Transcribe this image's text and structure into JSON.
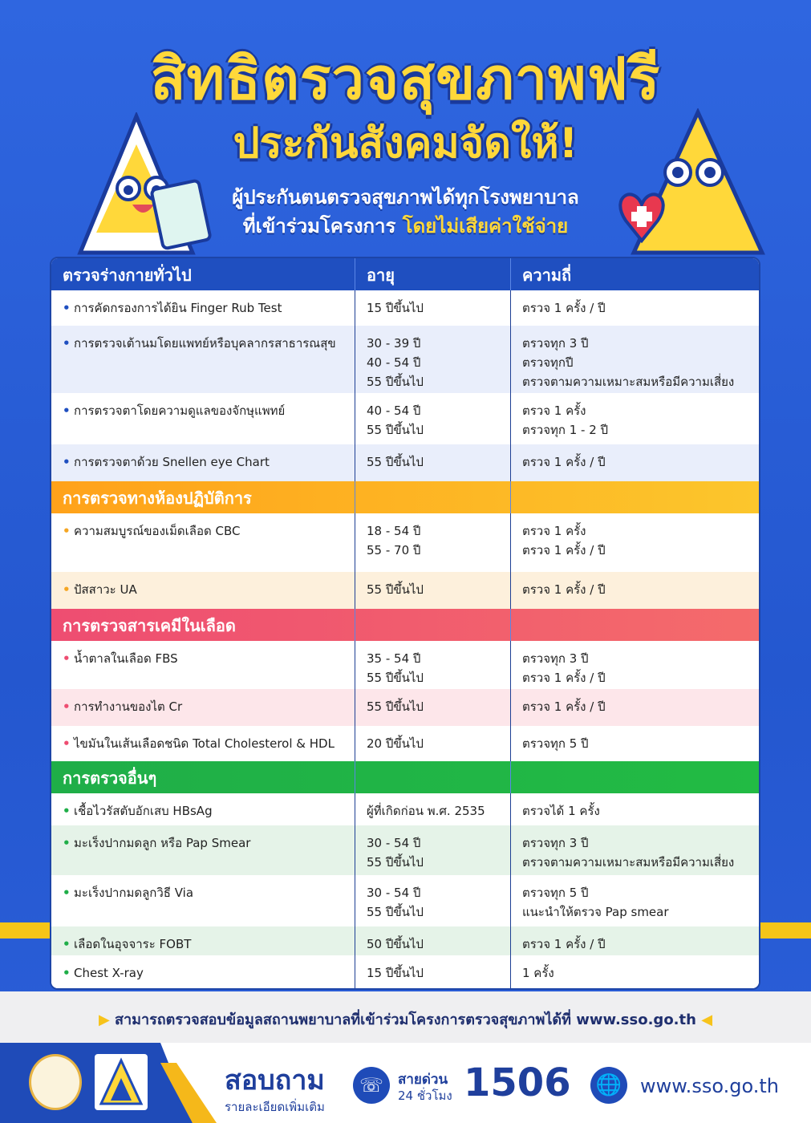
{
  "header": {
    "title_line1": "สิทธิตรวจสุขภาพฟรี",
    "title_line2": "ประกันสังคมจัดให้!",
    "subtitle_line1": "ผู้ประกันตนตรวจสุขภาพได้ทุกโรงพยาบาล",
    "subtitle_line2_a": "ที่เข้าร่วมโครงการ ",
    "subtitle_line2_highlight": "โดยไม่เสียค่าใช้จ่าย"
  },
  "colors": {
    "primary": "#2457cf",
    "title_yellow": "#ffd83a",
    "orange": "#ffa41b",
    "pink": "#f0506e",
    "green": "#22b14c"
  },
  "table": {
    "col_age": "อายุ",
    "col_freq": "ความถี่",
    "sections": [
      {
        "title": "ตรวจร่างกายทั่วไป",
        "header_bg": "#1f4fc0",
        "header_bg2": "#1f4fc0",
        "dot_color": "#1f4fc0",
        "alt_bg": "#e9eefb",
        "rows": [
          {
            "item": "การคัดกรองการได้ยิน Finger Rub Test",
            "age": [
              "15 ปีขึ้นไป"
            ],
            "freq": [
              "ตรวจ 1 ครั้ง / ปี"
            ]
          },
          {
            "item": "การตรวจเต้านมโดยแพทย์หรือบุคลากรสาธารณสุข",
            "age": [
              "30 - 39 ปี",
              "40 - 54 ปี",
              "55 ปีขึ้นไป"
            ],
            "freq": [
              "ตรวจทุก 3 ปี",
              "ตรวจทุกปี",
              "ตรวจตามความเหมาะสมหรือมีความเสี่ยง"
            ]
          },
          {
            "item": "การตรวจตาโดยความดูแลของจักษุแพทย์",
            "age": [
              "40 - 54 ปี",
              "55 ปีขึ้นไป"
            ],
            "freq": [
              "ตรวจ 1 ครั้ง",
              "ตรวจทุก 1 - 2 ปี"
            ]
          },
          {
            "item": "การตรวจตาด้วย Snellen eye Chart",
            "age": [
              "55 ปีขึ้นไป"
            ],
            "freq": [
              "ตรวจ 1 ครั้ง / ปี"
            ]
          }
        ]
      },
      {
        "title": "การตรวจทางห้องปฏิบัติการ",
        "header_bg": "#ffa21a",
        "header_bg2": "#fcc62c",
        "dot_color": "#f5a623",
        "alt_bg": "#fdf0dc",
        "rows": [
          {
            "item": "ความสมบูรณ์ของเม็ดเลือด CBC",
            "age": [
              "18 - 54 ปี",
              "55 - 70 ปี"
            ],
            "freq": [
              "ตรวจ 1 ครั้ง",
              "ตรวจ 1 ครั้ง / ปี"
            ]
          },
          {
            "item": "ปัสสาวะ UA",
            "age": [
              "55 ปีขึ้นไป"
            ],
            "freq": [
              "ตรวจ 1 ครั้ง / ปี"
            ]
          }
        ]
      },
      {
        "title": "การตรวจสารเคมีในเลือด",
        "header_bg": "#ee4d71",
        "header_bg2": "#f46b6b",
        "dot_color": "#ee4d71",
        "alt_bg": "#fde6ea",
        "rows": [
          {
            "item": "น้ำตาลในเลือด FBS",
            "age": [
              "35 - 54 ปี",
              "55 ปีขึ้นไป"
            ],
            "freq": [
              "ตรวจทุก 3 ปี",
              "ตรวจ 1 ครั้ง / ปี"
            ]
          },
          {
            "item": "การทำงานของไต Cr",
            "age": [
              "55 ปีขึ้นไป"
            ],
            "freq": [
              "ตรวจ 1 ครั้ง / ปี"
            ]
          },
          {
            "item": "ไขมันในเส้นเลือดชนิด Total Cholesterol & HDL",
            "age": [
              "20 ปีขึ้นไป"
            ],
            "freq": [
              "ตรวจทุก 5 ปี"
            ]
          }
        ]
      },
      {
        "title": "การตรวจอื่นๆ",
        "header_bg": "#1fae48",
        "header_bg2": "#22bb44",
        "dot_color": "#1fae48",
        "alt_bg": "#e5f3e8",
        "rows": [
          {
            "item": "เชื้อไวรัสตับอักเสบ HBsAg",
            "age": [
              "ผู้ที่เกิดก่อน พ.ศ. 2535"
            ],
            "freq": [
              "ตรวจได้ 1 ครั้ง"
            ]
          },
          {
            "item": "มะเร็งปากมดลูก หรือ Pap Smear",
            "age": [
              "30 - 54 ปี",
              "55 ปีขึ้นไป"
            ],
            "freq": [
              "ตรวจทุก 3 ปี",
              "ตรวจตามความเหมาะสมหรือมีความเสี่ยง"
            ]
          },
          {
            "item": "มะเร็งปากมดลูกวิธี Via",
            "age": [
              "30 - 54 ปี",
              "55 ปีขึ้นไป"
            ],
            "freq": [
              "ตรวจทุก 5 ปี",
              "แนะนำให้ตรวจ Pap smear"
            ]
          },
          {
            "item": "เลือดในอุจจาระ FOBT",
            "age": [
              "50 ปีขึ้นไป"
            ],
            "freq": [
              "ตรวจ 1 ครั้ง / ปี"
            ]
          },
          {
            "item": "Chest X-ray",
            "age": [
              "15 ปีขึ้นไป"
            ],
            "freq": [
              "1 ครั้ง"
            ]
          }
        ]
      }
    ]
  },
  "note": "สามารถตรวจสอบข้อมูลสถานพยาบาลที่เข้าร่วมโครงการตรวจสุขภาพได้ที่ www.sso.go.th",
  "footer": {
    "ask": "สอบถาม",
    "ask_sub": "รายละเอียดเพิ่มเติม",
    "hotline_label": "สายด่วน",
    "hotline_hours": "24 ชั่วโมง",
    "hotline_number": "1506",
    "website": "www.sso.go.th"
  }
}
